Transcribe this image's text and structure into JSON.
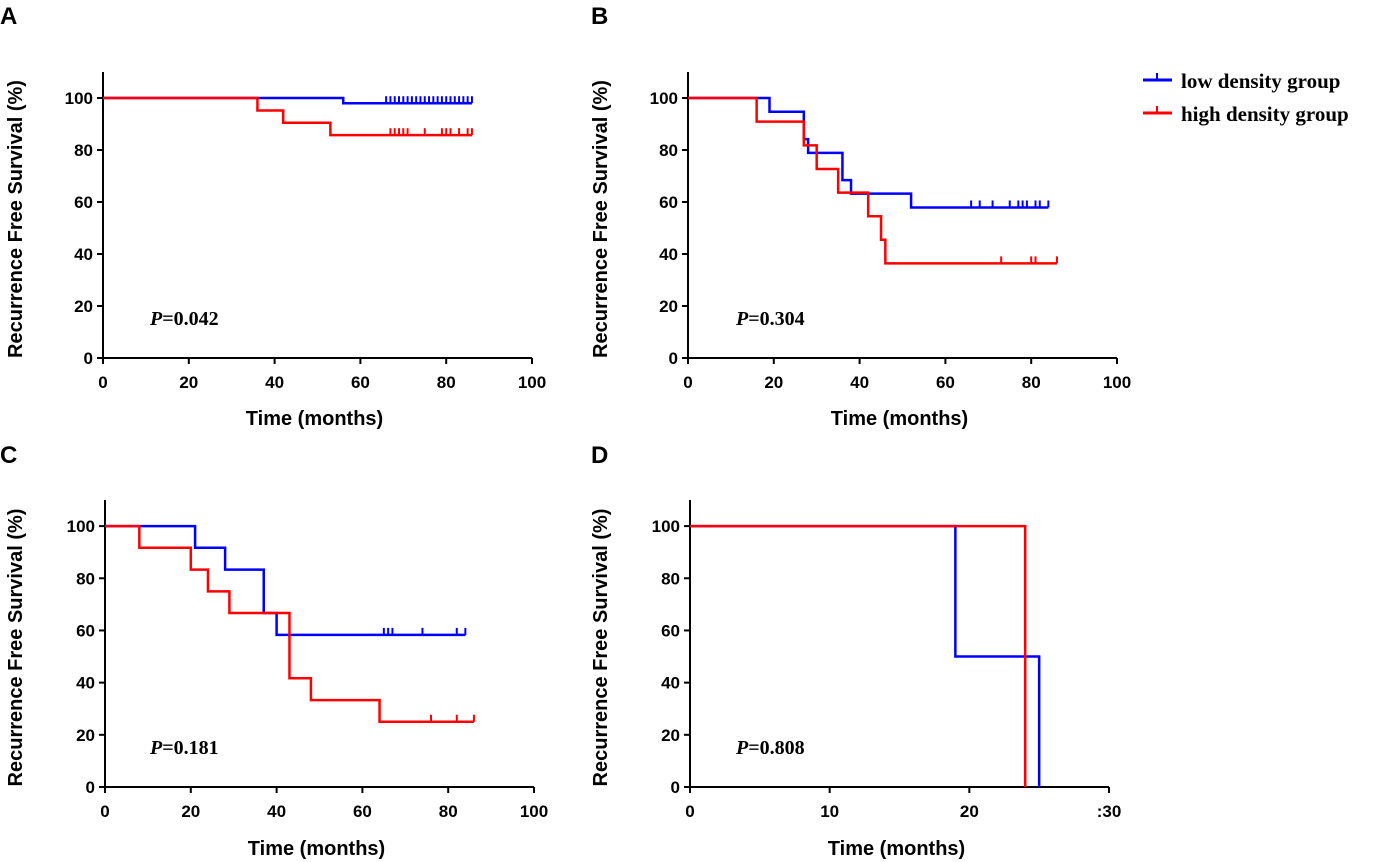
{
  "legend": {
    "entries": [
      {
        "name": "low density group",
        "color": "#0000ff"
      },
      {
        "name": "high density group",
        "color": "#ff0000"
      }
    ],
    "placement": "top-right"
  },
  "chart_data": [
    {
      "type": "line",
      "step": true,
      "panel": "A",
      "xlabel": "Time (months)",
      "ylabel": "Recurrence Free Survival (%)",
      "xlim": [
        0,
        100
      ],
      "ylim": [
        0,
        110
      ],
      "xticks": [
        0,
        20,
        40,
        60,
        80,
        100
      ],
      "yticks": [
        0,
        20,
        40,
        60,
        80,
        100
      ],
      "p_label": "P",
      "p_value": "=0.042",
      "series": [
        {
          "name": "low density group",
          "color": "#0000ff",
          "steps": [
            [
              0,
              100
            ],
            [
              56,
              98
            ]
          ],
          "end": 86,
          "censored": [
            [
              66,
              98
            ],
            [
              67,
              98
            ],
            [
              68,
              98
            ],
            [
              69,
              98
            ],
            [
              70,
              98
            ],
            [
              71,
              98
            ],
            [
              72,
              98
            ],
            [
              73,
              98
            ],
            [
              74,
              98
            ],
            [
              75,
              98
            ],
            [
              76,
              98
            ],
            [
              77,
              98
            ],
            [
              78,
              98
            ],
            [
              79,
              98
            ],
            [
              80,
              98
            ],
            [
              81,
              98
            ],
            [
              82,
              98
            ],
            [
              83,
              98
            ],
            [
              84,
              98
            ],
            [
              85,
              98
            ],
            [
              86,
              98
            ]
          ]
        },
        {
          "name": "high density group",
          "color": "#ff0000",
          "steps": [
            [
              0,
              100
            ],
            [
              36,
              95.2
            ],
            [
              42,
              90.5
            ],
            [
              53,
              85.7
            ]
          ],
          "end": 86,
          "censored": [
            [
              67,
              85.7
            ],
            [
              68,
              85.7
            ],
            [
              69,
              85.7
            ],
            [
              70,
              85.7
            ],
            [
              71,
              85.7
            ],
            [
              75,
              85.7
            ],
            [
              79,
              85.7
            ],
            [
              80,
              85.7
            ],
            [
              81,
              85.7
            ],
            [
              83,
              85.7
            ],
            [
              85,
              85.7
            ],
            [
              86,
              85.7
            ]
          ]
        }
      ]
    },
    {
      "type": "line",
      "step": true,
      "panel": "B",
      "xlabel": "Time (months)",
      "ylabel": "Recurrence Free Survival (%)",
      "xlim": [
        0,
        100
      ],
      "ylim": [
        0,
        110
      ],
      "xticks": [
        0,
        20,
        40,
        60,
        80,
        100
      ],
      "yticks": [
        0,
        20,
        40,
        60,
        80,
        100
      ],
      "p_label": "P",
      "p_value": "=0.304",
      "series": [
        {
          "name": "low density group",
          "color": "#0000ff",
          "steps": [
            [
              0,
              100
            ],
            [
              19,
              94.7
            ],
            [
              27,
              84.2
            ],
            [
              28,
              78.9
            ],
            [
              36,
              68.4
            ],
            [
              38,
              63.2
            ],
            [
              52,
              57.9
            ]
          ],
          "end": 84,
          "censored": [
            [
              66,
              57.9
            ],
            [
              68,
              57.9
            ],
            [
              71,
              57.9
            ],
            [
              75,
              57.9
            ],
            [
              77,
              57.9
            ],
            [
              78,
              57.9
            ],
            [
              79,
              57.9
            ],
            [
              81,
              57.9
            ],
            [
              82,
              57.9
            ],
            [
              84,
              57.9
            ]
          ]
        },
        {
          "name": "high density group",
          "color": "#ff0000",
          "steps": [
            [
              0,
              100
            ],
            [
              16,
              90.9
            ],
            [
              27,
              81.8
            ],
            [
              30,
              72.7
            ],
            [
              35,
              63.6
            ],
            [
              42,
              54.5
            ],
            [
              45,
              45.5
            ],
            [
              46,
              36.4
            ]
          ],
          "end": 86,
          "censored": [
            [
              73,
              36.4
            ],
            [
              80,
              36.4
            ],
            [
              81,
              36.4
            ],
            [
              86,
              36.4
            ]
          ]
        }
      ]
    },
    {
      "type": "line",
      "step": true,
      "panel": "C",
      "xlabel": "Time (months)",
      "ylabel": "Recurrence Free Survival (%)",
      "xlim": [
        0,
        100
      ],
      "ylim": [
        0,
        110
      ],
      "xticks": [
        0,
        20,
        40,
        60,
        80,
        100
      ],
      "yticks": [
        0,
        20,
        40,
        60,
        80,
        100
      ],
      "p_label": "P",
      "p_value": "=0.181",
      "series": [
        {
          "name": "low density group",
          "color": "#0000ff",
          "steps": [
            [
              0,
              100
            ],
            [
              21,
              91.7
            ],
            [
              28,
              83.3
            ],
            [
              37,
              66.7
            ],
            [
              40,
              58.3
            ]
          ],
          "end": 84,
          "censored": [
            [
              65,
              58.3
            ],
            [
              66,
              58.3
            ],
            [
              67,
              58.3
            ],
            [
              74,
              58.3
            ],
            [
              82,
              58.3
            ],
            [
              84,
              58.3
            ]
          ]
        },
        {
          "name": "high density group",
          "color": "#ff0000",
          "steps": [
            [
              0,
              100
            ],
            [
              8,
              91.7
            ],
            [
              20,
              83.3
            ],
            [
              24,
              75
            ],
            [
              29,
              66.7
            ],
            [
              43,
              41.7
            ],
            [
              48,
              33.3
            ],
            [
              64,
              25
            ]
          ],
          "end": 86,
          "censored": [
            [
              76,
              25
            ],
            [
              82,
              25
            ],
            [
              86,
              25
            ]
          ]
        }
      ]
    },
    {
      "type": "line",
      "step": true,
      "panel": "D",
      "xlabel": "Time (months)",
      "ylabel": "Recurrence Free Survival (%)",
      "xlim": [
        0,
        30
      ],
      "ylim": [
        0,
        110
      ],
      "xticks": [
        0,
        10,
        20,
        30
      ],
      "xtick_labels": [
        "0",
        "10",
        "20",
        ":30"
      ],
      "yticks": [
        0,
        20,
        40,
        60,
        80,
        100
      ],
      "p_label": "P",
      "p_value": "=0.808",
      "series": [
        {
          "name": "low density group",
          "color": "#0000ff",
          "steps": [
            [
              0,
              100
            ],
            [
              19,
              50
            ],
            [
              25,
              0
            ]
          ],
          "end": 25,
          "censored": []
        },
        {
          "name": "high density group",
          "color": "#ff0000",
          "steps": [
            [
              0,
              100
            ],
            [
              24,
              0
            ]
          ],
          "end": 24,
          "censored": []
        }
      ]
    }
  ]
}
